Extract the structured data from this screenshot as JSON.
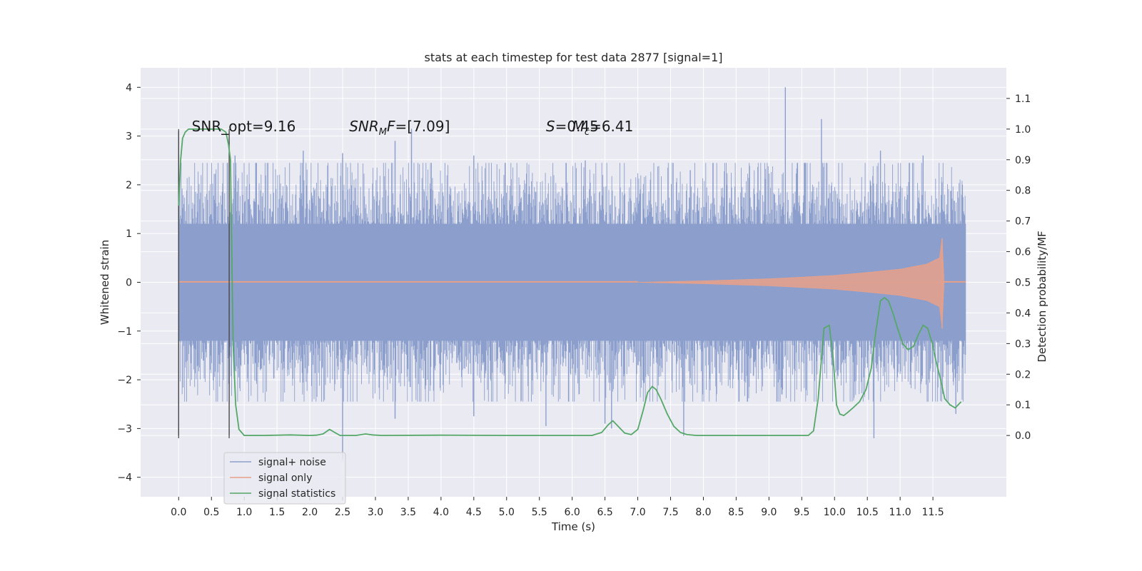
{
  "chart_data": {
    "type": "line",
    "title": "stats at each timestep for test data 2877 [signal=1]",
    "xlabel": "Time (s)",
    "ylabel_left": "Whitened strain",
    "ylabel_right": "Detection probability/MF",
    "xlim": [
      -0.58,
      12.62
    ],
    "ylim_left": [
      -4.4,
      4.4
    ],
    "ylim_right": [
      -0.2,
      1.2
    ],
    "x_ticks": [
      "0.0",
      "0.5",
      "1.0",
      "1.5",
      "2.0",
      "2.5",
      "3.0",
      "3.5",
      "4.0",
      "4.5",
      "5.0",
      "5.5",
      "6.0",
      "6.5",
      "7.0",
      "7.5",
      "8.0",
      "8.5",
      "9.0",
      "9.5",
      "10.0",
      "10.5",
      "11.0",
      "11.5"
    ],
    "y_ticks_left": [
      "4",
      "3",
      "2",
      "1",
      "0",
      "−1",
      "−2",
      "−3",
      "−4"
    ],
    "y_ticks_right": [
      "1.1",
      "1.0",
      "0.9",
      "0.8",
      "0.7",
      "0.6",
      "0.5",
      "0.4",
      "0.3",
      "0.2",
      "0.1",
      "0.0"
    ],
    "grid": true,
    "legend_position": "lower-left",
    "annotations": {
      "snr_opt": "SNR_opt=9.16",
      "snr_mf_symbol": "SNR",
      "snr_mf_sub": "M",
      "snr_mf_rest": "F",
      "snr_mf_value": "=[7.09]",
      "s_symbol": "S",
      "s_value": "=0.45",
      "mc_symbol": "M",
      "mc_sub": "c",
      "mc_value": "=6.41"
    },
    "vertical_markers": [
      0.0,
      0.77
    ],
    "series": [
      {
        "name": "signal+ noise",
        "color": "#8c9fcc",
        "axis": "left",
        "x_range": [
          0.0,
          12.0
        ],
        "core_amplitude": 1.2,
        "noise_std": 0.75,
        "positive_peaks": [
          [
            0.86,
            2.6
          ],
          [
            1.9,
            2.7
          ],
          [
            2.5,
            2.65
          ],
          [
            3.3,
            2.9
          ],
          [
            3.55,
            3.15
          ],
          [
            4.5,
            2.6
          ],
          [
            6.2,
            2.5
          ],
          [
            7.8,
            2.3
          ],
          [
            9.25,
            4.0
          ],
          [
            9.8,
            3.35
          ],
          [
            10.7,
            2.7
          ],
          [
            11.35,
            2.6
          ]
        ],
        "negative_peaks": [
          [
            2.5,
            -3.65
          ],
          [
            3.3,
            -2.8
          ],
          [
            4.5,
            -2.75
          ],
          [
            5.6,
            -2.95
          ],
          [
            6.5,
            -2.9
          ],
          [
            6.6,
            -3.0
          ],
          [
            7.7,
            -3.15
          ],
          [
            10.6,
            -3.2
          ],
          [
            11.85,
            -2.7
          ]
        ]
      },
      {
        "name": "signal only",
        "color": "#e8a088",
        "axis": "left",
        "chirp_start": 7.0,
        "merger_time": 11.64,
        "ringdown_end": 11.67,
        "end_time": 12.0,
        "envelope": [
          [
            7.0,
            0.0
          ],
          [
            8.0,
            0.03
          ],
          [
            9.0,
            0.07
          ],
          [
            10.0,
            0.14
          ],
          [
            10.5,
            0.2
          ],
          [
            11.0,
            0.27
          ],
          [
            11.4,
            0.37
          ],
          [
            11.6,
            0.5
          ],
          [
            11.64,
            0.9
          ]
        ]
      },
      {
        "name": "signal statistics",
        "color": "#55a868",
        "axis": "right",
        "x": [
          0.0,
          0.03,
          0.06,
          0.1,
          0.15,
          0.2,
          0.3,
          0.5,
          0.65,
          0.72,
          0.76,
          0.79,
          0.83,
          0.87,
          0.92,
          1.0,
          1.3,
          1.7,
          2.0,
          2.1,
          2.2,
          2.3,
          2.38,
          2.46,
          2.55,
          2.7,
          2.85,
          2.95,
          3.1,
          4.0,
          5.0,
          5.5,
          6.0,
          6.3,
          6.45,
          6.55,
          6.62,
          6.7,
          6.8,
          6.9,
          7.0,
          7.08,
          7.15,
          7.22,
          7.28,
          7.35,
          7.45,
          7.55,
          7.65,
          7.75,
          7.9,
          8.2,
          9.0,
          9.5,
          9.6,
          9.68,
          9.75,
          9.84,
          9.92,
          9.98,
          10.03,
          10.08,
          10.14,
          10.2,
          10.28,
          10.38,
          10.48,
          10.56,
          10.63,
          10.7,
          10.76,
          10.82,
          10.89,
          10.96,
          11.04,
          11.12,
          11.2,
          11.28,
          11.35,
          11.42,
          11.49,
          11.55,
          11.62,
          11.68,
          11.76,
          11.84,
          11.93
        ],
        "y": [
          0.75,
          0.9,
          0.97,
          0.99,
          1.0,
          1.0,
          1.0,
          1.0,
          1.0,
          0.99,
          0.95,
          0.9,
          0.3,
          0.1,
          0.02,
          0.0,
          0.0,
          0.002,
          0.0,
          0.001,
          0.005,
          0.02,
          0.01,
          0.0,
          0.0,
          0.0,
          0.005,
          0.002,
          0.0,
          0.001,
          0.0,
          0.0,
          0.0,
          0.0,
          0.01,
          0.035,
          0.048,
          0.03,
          0.008,
          0.003,
          0.02,
          0.08,
          0.14,
          0.16,
          0.15,
          0.12,
          0.07,
          0.03,
          0.01,
          0.003,
          0.0,
          0.0,
          0.0,
          0.0,
          0.0,
          0.015,
          0.12,
          0.35,
          0.36,
          0.25,
          0.1,
          0.07,
          0.065,
          0.075,
          0.09,
          0.11,
          0.15,
          0.22,
          0.34,
          0.44,
          0.45,
          0.44,
          0.4,
          0.35,
          0.3,
          0.28,
          0.29,
          0.33,
          0.36,
          0.35,
          0.3,
          0.24,
          0.18,
          0.12,
          0.1,
          0.09,
          0.11
        ]
      }
    ]
  }
}
